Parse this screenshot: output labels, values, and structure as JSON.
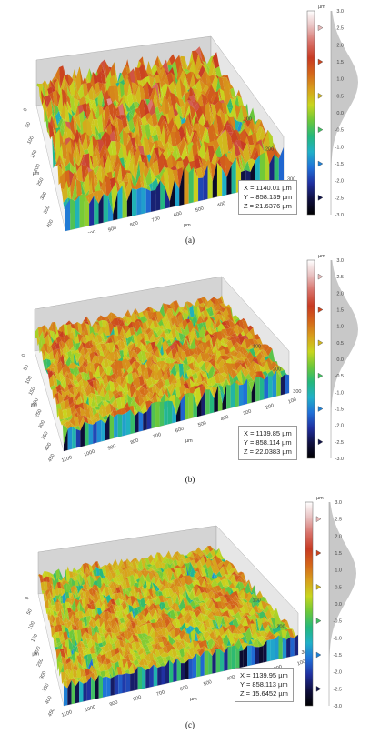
{
  "colorbar": {
    "unit": "µm",
    "ticks": [
      "3.0",
      "2.5",
      "2.0",
      "1.5",
      "1.0",
      "0.5",
      "0.0",
      "-0.5",
      "-1.0",
      "-1.5",
      "-2.0",
      "-2.5",
      "-3.0"
    ],
    "gradient": [
      "#ffffff",
      "#e8c0c0",
      "#d87068",
      "#c83a22",
      "#d4661a",
      "#d8a01c",
      "#c8d61e",
      "#6cc83a",
      "#24b87c",
      "#20b0c8",
      "#2070d8",
      "#2030a0",
      "#101040",
      "#000000"
    ]
  },
  "panels": [
    {
      "caption": "(a)",
      "readout": {
        "x": "X = 1140.01 µm",
        "y": "Y = 858.139 µm",
        "z": "Z = 21.6376 µm"
      },
      "left_axis_ticks": [
        "0",
        "50",
        "100",
        "150",
        "200",
        "250",
        "300",
        "350",
        "400",
        "450"
      ],
      "left_axis_unit": "µm",
      "front_axis_ticks": [
        "1100",
        "1000",
        "900",
        "800",
        "700",
        "600",
        "500",
        "400",
        "300",
        "200",
        "100"
      ],
      "front_axis_unit": "µm",
      "right_axis_ticks": [
        "100",
        "200",
        "300"
      ],
      "surface_style": "coarse-peaks"
    },
    {
      "caption": "(b)",
      "readout": {
        "x": "X = 1139.85 µm",
        "y": "Y = 858.114 µm",
        "z": "Z = 22.0383 µm"
      },
      "left_axis_ticks": [
        "0",
        "50",
        "100",
        "150",
        "200",
        "250",
        "300",
        "350",
        "400",
        "450"
      ],
      "left_axis_unit": "µm",
      "front_axis_ticks": [
        "1100",
        "1000",
        "900",
        "800",
        "700",
        "600",
        "500",
        "400",
        "300",
        "200",
        "100"
      ],
      "front_axis_unit": "µm",
      "right_axis_ticks": [
        "100",
        "200",
        "300"
      ],
      "surface_style": "medium"
    },
    {
      "caption": "(c)",
      "readout": {
        "x": "X = 1139.95 µm",
        "y": "Y = 858.113 µm",
        "z": "Z = 15.6452 µm"
      },
      "left_axis_ticks": [
        "0",
        "50",
        "100",
        "150",
        "200",
        "250",
        "300",
        "350",
        "400",
        "450"
      ],
      "left_axis_unit": "µm",
      "front_axis_ticks": [
        "1100",
        "1000",
        "900",
        "800",
        "700",
        "600",
        "500",
        "400",
        "300",
        "200",
        "100"
      ],
      "front_axis_unit": "µm",
      "right_axis_ticks": [
        "100",
        "200",
        "300"
      ],
      "surface_style": "fine"
    }
  ]
}
